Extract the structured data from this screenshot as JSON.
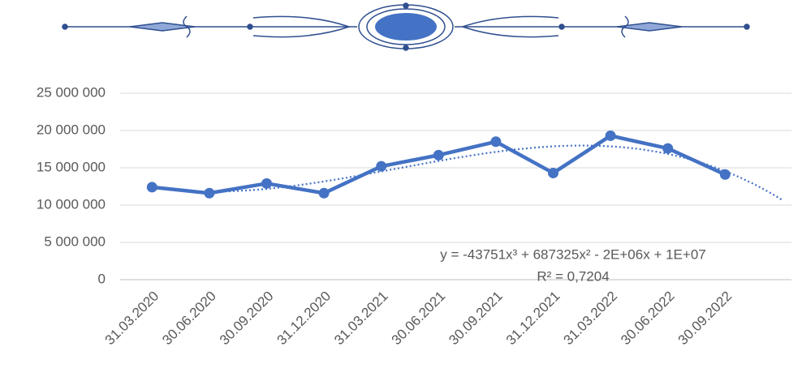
{
  "chart_data": {
    "type": "line",
    "categories": [
      "31.03.2020",
      "30.06.2020",
      "30.09.2020",
      "31.12.2020",
      "31.03.2021",
      "30.06.2021",
      "30.09.2021",
      "31.12.2021",
      "31.03.2022",
      "30.06.2022",
      "30.09.2022"
    ],
    "values": [
      12400000,
      11600000,
      12900000,
      11600000,
      15200000,
      16700000,
      18500000,
      14300000,
      19300000,
      17600000,
      14100000
    ],
    "color": "#4472c4",
    "markers": true,
    "ylim": [
      0,
      25000000
    ],
    "yticks": [
      0,
      {
        "value": 5000000,
        "label": "5 000 000"
      },
      {
        "value": 10000000,
        "label": "10 000 000"
      },
      {
        "value": 15000000,
        "label": "15 000 000"
      },
      {
        "value": 20000000,
        "label": "20 000 000"
      },
      {
        "value": 25000000,
        "label": "25 000 000"
      }
    ],
    "grid": true,
    "trendline": {
      "type": "polynomial",
      "order": 3,
      "forward": 1,
      "labels": [
        "y = -43751x³ + 687325x² - 2E+06x + 1E+07",
        "R² = 0,7204"
      ]
    }
  }
}
